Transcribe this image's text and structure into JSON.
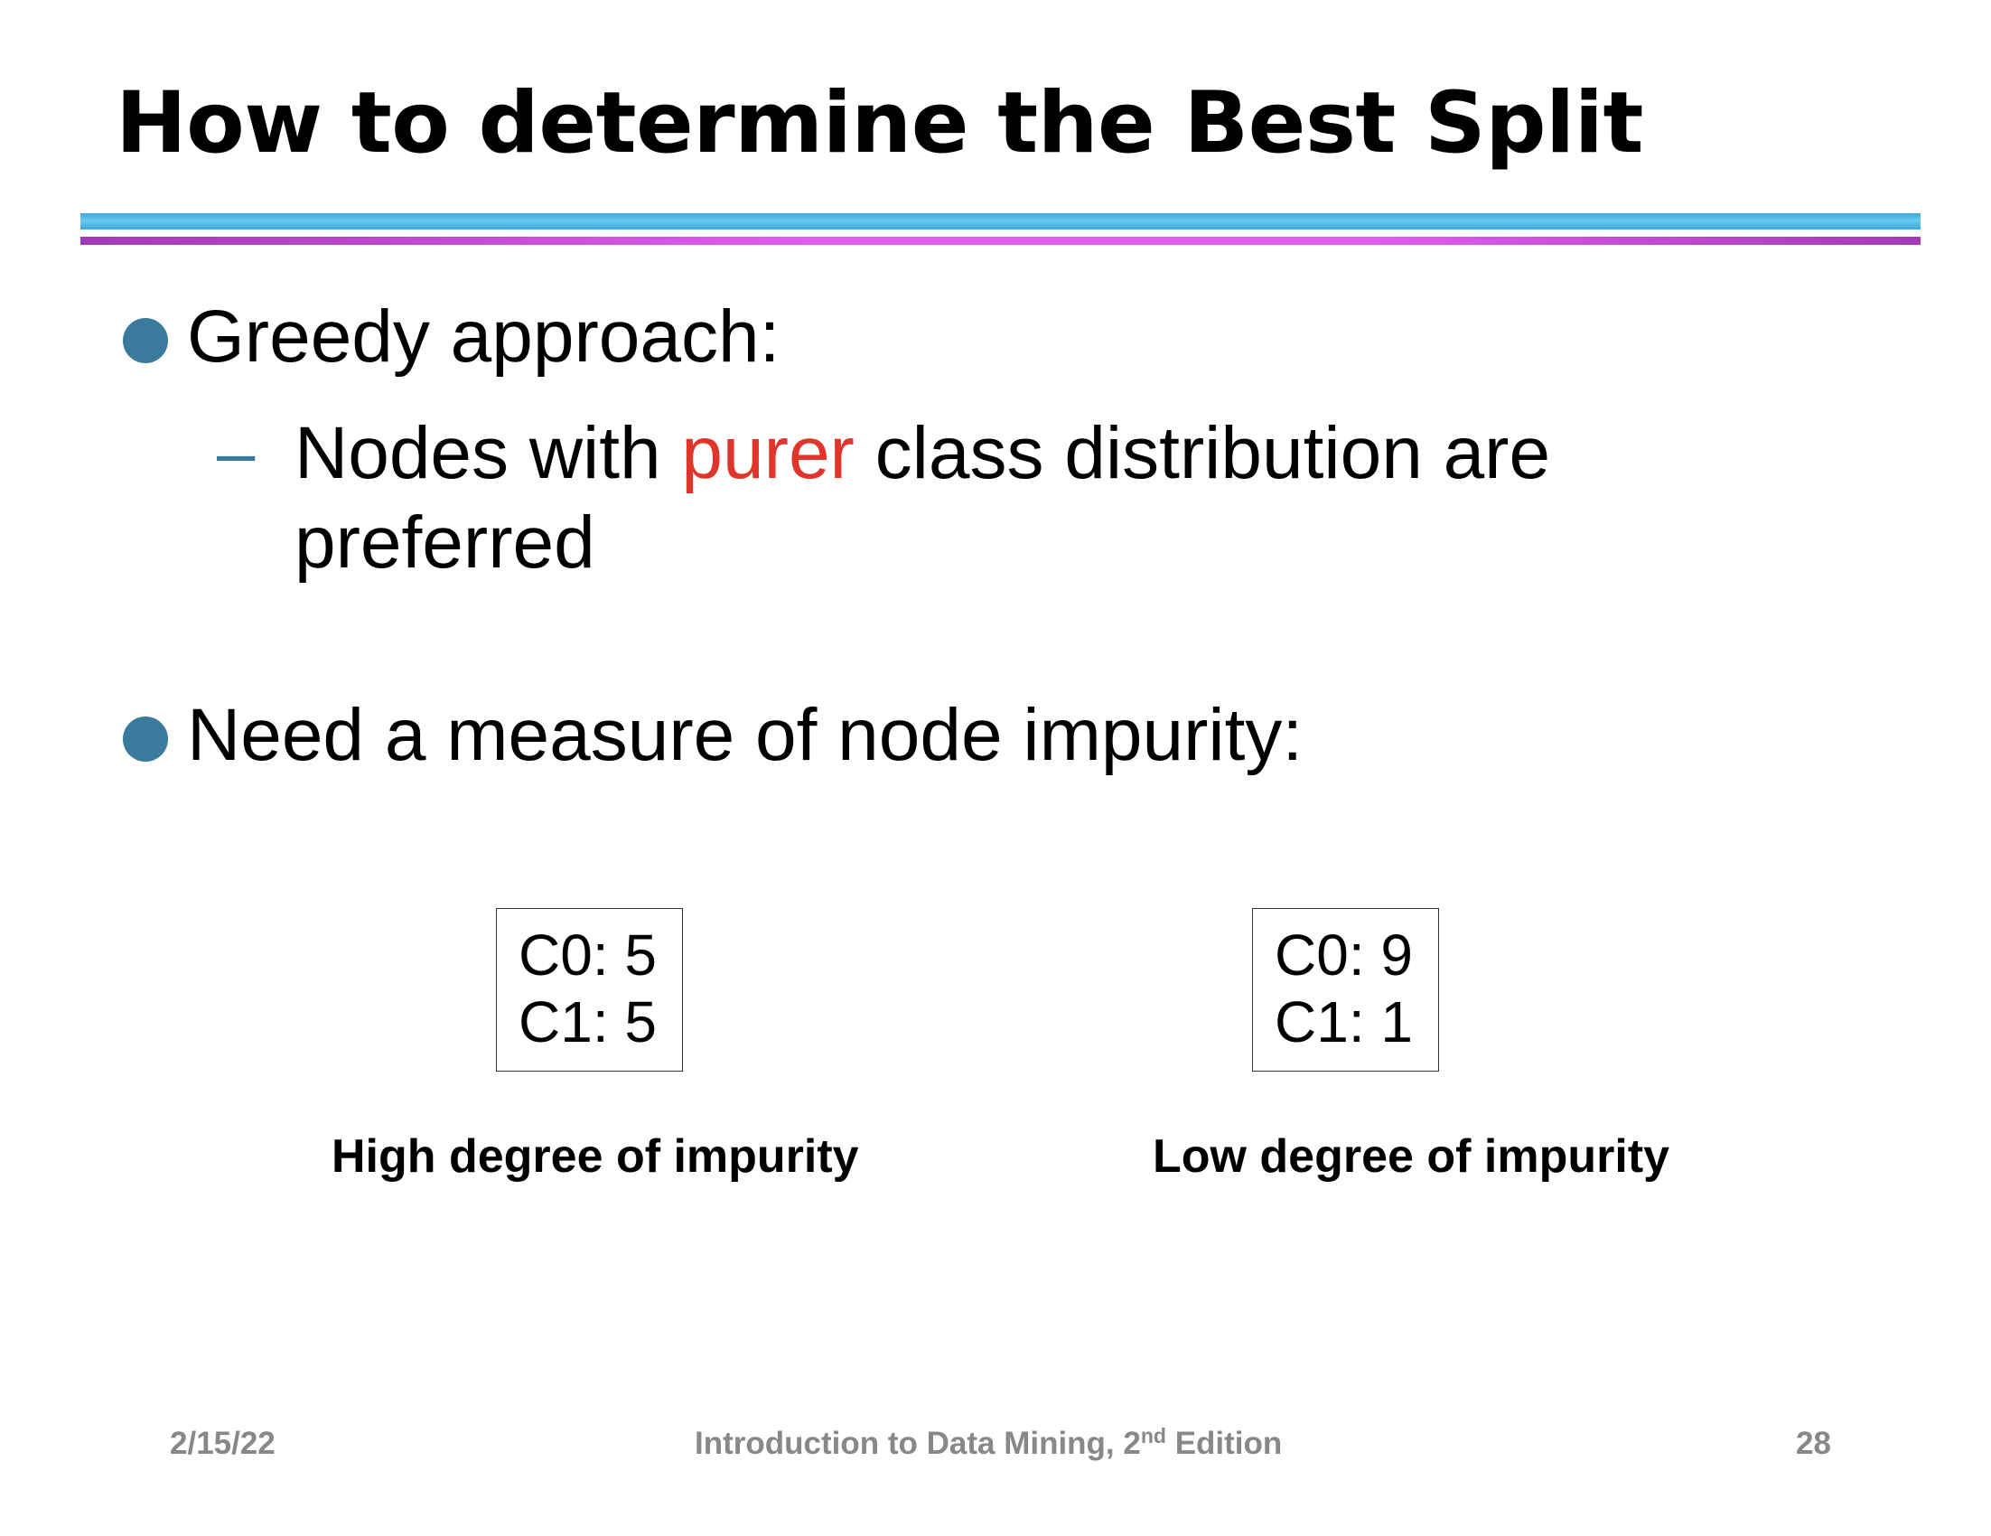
{
  "slide": {
    "title": "How to determine the Best Split"
  },
  "bullets": [
    {
      "text": "Greedy approach:",
      "sub": {
        "before": "Nodes with ",
        "highlight": "purer",
        "after": " class distribution are",
        "line2": "preferred"
      }
    },
    {
      "text": "Need a measure of node impurity:"
    }
  ],
  "nodes": [
    {
      "line1": "C0: 5",
      "line2": "C1: 5",
      "caption": "High degree of impurity"
    },
    {
      "line1": "C0: 9",
      "line2": "C1: 1",
      "caption": "Low degree of impurity"
    }
  ],
  "footer": {
    "date": "2/15/22",
    "book_prefix": "Introduction to Data Mining, 2",
    "book_sup": "nd",
    "book_suffix": " Edition",
    "page": "28"
  },
  "colors": {
    "bullet": "#3a7a9c",
    "highlight": "#e0352b",
    "rule_top": "#4fb8e4",
    "rule_bottom": "#d050e0",
    "footer_text": "#888888"
  }
}
